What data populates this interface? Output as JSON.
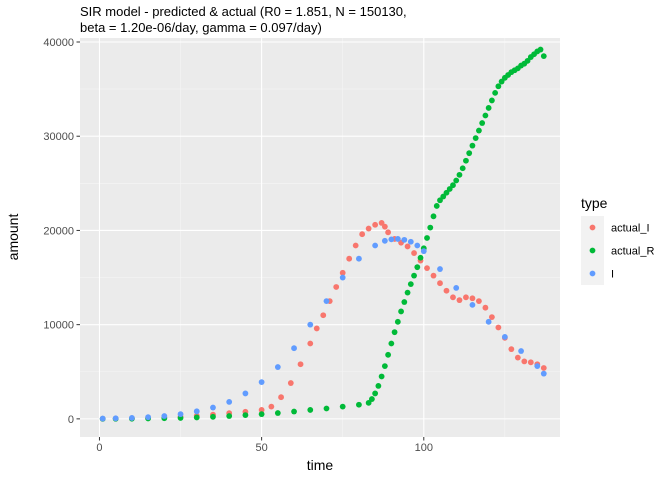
{
  "chart_data": {
    "type": "scatter",
    "title_line1": "SIR model - predicted & actual (R0 = 1.851, N = 150130,",
    "title_line2": "beta = 1.20e-06/day, gamma = 0.097/day)",
    "xlabel": "time",
    "ylabel": "amount",
    "xlim": [
      -6,
      142
    ],
    "ylim": [
      -1925,
      40425
    ],
    "x_ticks": [
      0,
      50,
      100
    ],
    "x_tick_labels": [
      "0",
      "50",
      "100"
    ],
    "y_ticks": [
      0,
      10000,
      20000,
      30000,
      40000
    ],
    "y_tick_labels": [
      "0",
      "10000",
      "20000",
      "30000",
      "40000"
    ],
    "grid": true,
    "legend": {
      "title": "type",
      "position": "right",
      "entries": [
        {
          "label": "actual_I",
          "color": "#F8766D"
        },
        {
          "label": "actual_R",
          "color": "#00BA38"
        },
        {
          "label": "I",
          "color": "#619CFF"
        }
      ]
    },
    "series": [
      {
        "name": "actual_I",
        "color": "#F8766D",
        "x": [
          1,
          5,
          10,
          15,
          20,
          25,
          30,
          35,
          40,
          45,
          50,
          53,
          56,
          59,
          62,
          65,
          67,
          69,
          71,
          73,
          75,
          77,
          79,
          81,
          83,
          85,
          87,
          88,
          89,
          91,
          93,
          95,
          97,
          99,
          101,
          103,
          105,
          107,
          109,
          111,
          113,
          115,
          117,
          119,
          121,
          123,
          125,
          127,
          129,
          131,
          133,
          135,
          137
        ],
        "y": [
          10,
          20,
          40,
          80,
          140,
          230,
          330,
          450,
          600,
          750,
          950,
          1300,
          2300,
          3800,
          5800,
          8000,
          9600,
          11000,
          12500,
          14000,
          15500,
          17000,
          18400,
          19600,
          20200,
          20600,
          20800,
          20400,
          19800,
          19100,
          18700,
          18300,
          17600,
          16800,
          16000,
          15200,
          14400,
          13600,
          12900,
          12600,
          12900,
          12800,
          12500,
          11800,
          10800,
          9700,
          8600,
          7400,
          6500,
          6100,
          6000,
          5800,
          5400
        ]
      },
      {
        "name": "actual_R",
        "color": "#00BA38",
        "x": [
          1,
          5,
          10,
          15,
          20,
          25,
          30,
          35,
          40,
          45,
          50,
          55,
          60,
          65,
          70,
          75,
          80,
          83,
          84,
          85,
          86,
          87,
          88,
          89,
          90,
          91,
          92,
          93,
          94,
          95,
          96,
          97,
          98,
          99,
          100,
          101,
          102,
          103,
          104,
          105,
          106,
          107,
          108,
          109,
          110,
          111,
          112,
          113,
          114,
          115,
          116,
          117,
          118,
          119,
          120,
          121,
          122,
          123,
          124,
          125,
          126,
          127,
          128,
          129,
          130,
          131,
          132,
          133,
          134,
          135,
          136,
          137
        ],
        "y": [
          5,
          10,
          20,
          40,
          70,
          100,
          150,
          220,
          300,
          400,
          500,
          620,
          780,
          950,
          1100,
          1300,
          1500,
          1700,
          2100,
          2700,
          3500,
          4500,
          5600,
          6800,
          8000,
          9200,
          10300,
          11400,
          12400,
          13400,
          14300,
          15200,
          16100,
          17100,
          18100,
          19200,
          20300,
          21500,
          22600,
          23200,
          23600,
          24000,
          24400,
          24800,
          25300,
          25900,
          26600,
          27400,
          28200,
          29000,
          29800,
          30600,
          31400,
          32200,
          33000,
          33800,
          34600,
          35300,
          35800,
          36200,
          36500,
          36800,
          37000,
          37200,
          37500,
          37700,
          38000,
          38400,
          38700,
          39000,
          39200,
          38500
        ]
      },
      {
        "name": "I",
        "color": "#619CFF",
        "x": [
          1,
          5,
          10,
          15,
          20,
          25,
          30,
          35,
          40,
          45,
          50,
          55,
          60,
          65,
          70,
          75,
          80,
          85,
          88,
          90,
          92,
          94,
          96,
          98,
          100,
          105,
          110,
          115,
          120,
          125,
          130,
          135,
          137
        ],
        "y": [
          30,
          60,
          100,
          180,
          300,
          500,
          800,
          1200,
          1800,
          2700,
          3900,
          5500,
          7500,
          10000,
          12500,
          15000,
          17000,
          18400,
          18900,
          19050,
          19100,
          19000,
          18800,
          18400,
          17800,
          15900,
          13900,
          12100,
          10300,
          8700,
          7200,
          5600,
          4800
        ]
      }
    ]
  }
}
